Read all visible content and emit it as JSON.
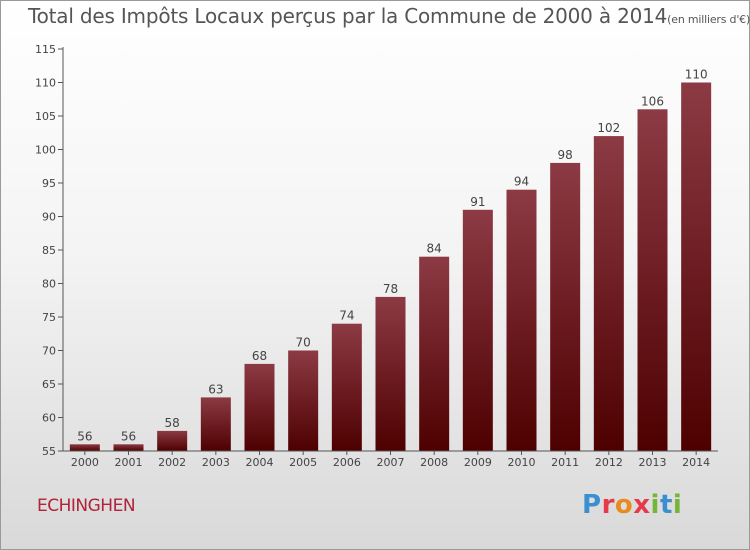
{
  "header": {
    "title": "Total des Impôts Locaux perçus par la Commune de 2000 à 2014",
    "unit": "(en milliers d'€)"
  },
  "commune": "ECHINGHEN",
  "logo": {
    "text": "Proxiti"
  },
  "colors": {
    "bar_light": "#8c3a44",
    "bar_dark": "#4e0000",
    "axis": "#555555",
    "text": "#444444"
  },
  "chart_data": {
    "type": "bar",
    "title": "Total des Impôts Locaux perçus par la Commune de 2000 à 2014",
    "xlabel": "",
    "ylabel": "",
    "ylim": [
      55,
      115
    ],
    "yticks": [
      55,
      60,
      65,
      70,
      75,
      80,
      85,
      90,
      95,
      100,
      105,
      110,
      115
    ],
    "categories": [
      "2000",
      "2001",
      "2002",
      "2003",
      "2004",
      "2005",
      "2006",
      "2007",
      "2008",
      "2009",
      "2010",
      "2011",
      "2012",
      "2013",
      "2014"
    ],
    "values": [
      56,
      56,
      58,
      63,
      68,
      70,
      74,
      78,
      84,
      91,
      94,
      98,
      102,
      106,
      110
    ]
  }
}
